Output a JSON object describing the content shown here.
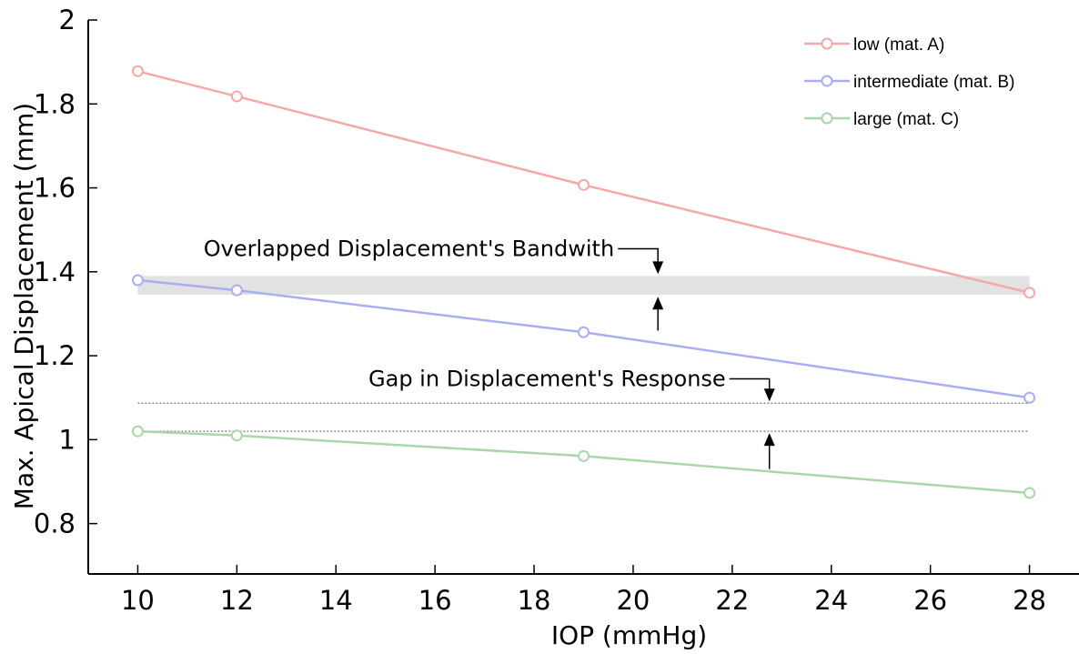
{
  "chart_data": {
    "type": "line",
    "title": "",
    "xlabel": "IOP (mmHg)",
    "ylabel": "Max. Apical Displacement (mm)",
    "xlim": [
      9,
      29
    ],
    "ylim": [
      0.68,
      2
    ],
    "xticks": [
      10,
      12,
      14,
      16,
      18,
      20,
      22,
      24,
      26,
      28
    ],
    "yticks": [
      0.8,
      1,
      1.2,
      1.4,
      1.6,
      1.8,
      2
    ],
    "ytick_labels": [
      "0.8",
      "1",
      "1.2",
      "1.4",
      "1.6",
      "1.8",
      "2"
    ],
    "grid": false,
    "legend_position": "top-right",
    "series": [
      {
        "name": "low (mat. A)",
        "color": "#f4a9a9",
        "x": [
          10,
          12,
          19,
          28
        ],
        "y": [
          1.878,
          1.818,
          1.607,
          1.35
        ]
      },
      {
        "name": "intermediate (mat. B)",
        "color": "#a9aef4",
        "x": [
          10,
          12,
          19,
          28
        ],
        "y": [
          1.38,
          1.356,
          1.256,
          1.1
        ]
      },
      {
        "name": "large (mat. C)",
        "color": "#a9d7a9",
        "x": [
          10,
          12,
          19,
          28
        ],
        "y": [
          1.02,
          1.01,
          0.961,
          0.873
        ]
      }
    ],
    "bands": [
      {
        "y_from": 1.345,
        "y_to": 1.39,
        "x_from": 10,
        "x_to": 28,
        "color": "#e2e2e2"
      }
    ],
    "reference_lines": [
      {
        "y": 1.087,
        "x_from": 10,
        "x_to": 28,
        "color": "#777777",
        "style": "dotted"
      },
      {
        "y": 1.02,
        "x_from": 10,
        "x_to": 28,
        "color": "#777777",
        "style": "dotted"
      }
    ],
    "annotations": [
      {
        "text": "Overlapped Displacement's Bandwith",
        "arrow_x": 20.5,
        "arrow_down_to": 1.39,
        "arrow_up_to": 1.345,
        "leader_y": 1.455,
        "arrow_up_from": 1.26
      },
      {
        "text": "Gap in Displacement's Response",
        "arrow_x": 22.75,
        "arrow_down_to": 1.087,
        "arrow_up_to": 1.02,
        "leader_y": 1.145,
        "arrow_up_from": 0.93
      }
    ]
  }
}
